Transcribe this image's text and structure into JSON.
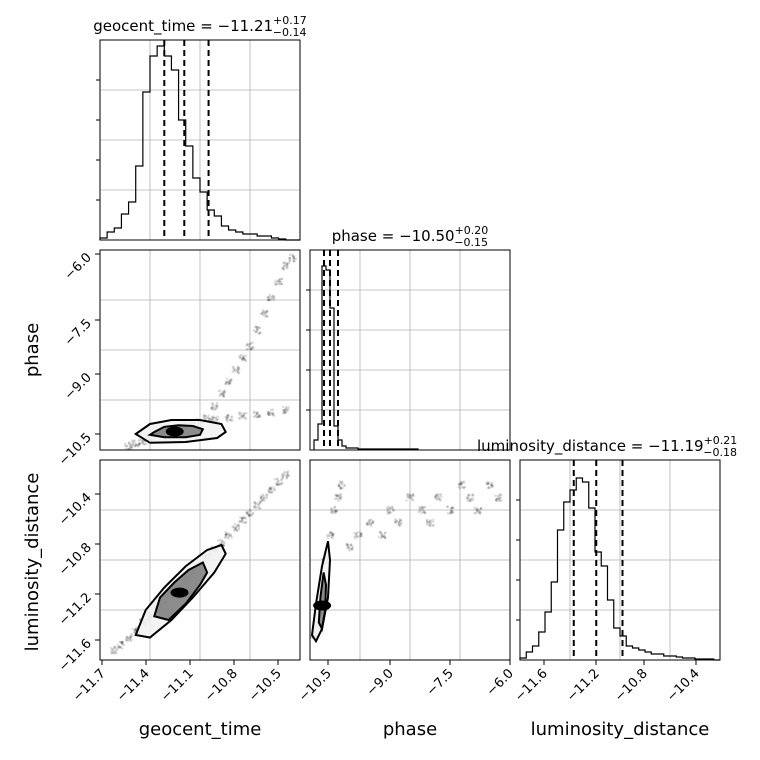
{
  "chart_data": [
    {
      "type": "histogram",
      "parameter": "geocent_time",
      "title_parts": {
        "name": "geocent_time",
        "median": "−11.21",
        "plus": "+0.17",
        "minus": "−0.14"
      },
      "x": [
        -11.775,
        -11.725,
        -11.675,
        -11.625,
        -11.575,
        -11.525,
        -11.475,
        -11.425,
        -11.375,
        -11.325,
        -11.275,
        -11.225,
        -11.175,
        -11.125,
        -11.075,
        -11.025,
        -10.975,
        -10.925,
        -10.875,
        -10.825,
        -10.775,
        -10.725,
        -10.675,
        -10.625,
        -10.575,
        -10.525,
        -10.475,
        -10.425
      ],
      "values": [
        0.01,
        0.04,
        0.06,
        0.13,
        0.19,
        0.37,
        0.74,
        0.92,
        0.97,
        0.92,
        0.85,
        0.6,
        0.47,
        0.31,
        0.24,
        0.15,
        0.12,
        0.07,
        0.05,
        0.04,
        0.03,
        0.03,
        0.02,
        0.02,
        0.01,
        0.005,
        0,
        0
      ],
      "quantiles": [
        -11.35,
        -11.21,
        -11.04
      ],
      "xlim": [
        -11.8,
        -10.4
      ],
      "ylim": [
        0,
        1.0
      ]
    },
    {
      "type": "histogram",
      "parameter": "phase",
      "title_parts": {
        "name": "phase",
        "median": "−10.50",
        "plus": "+0.20",
        "minus": "−0.15"
      },
      "x": [
        -10.85,
        -10.75,
        -10.65,
        -10.55,
        -10.45,
        -10.35,
        -10.25,
        -10.15,
        -10.05,
        -9.95,
        -9.85,
        -9.75,
        -9.65,
        -9.55,
        -9.45,
        -9.35,
        -9.25,
        -9.15,
        -9.05,
        -8.95,
        -8.85,
        -8.75,
        -8.65,
        -8.55,
        -8.45,
        -8.35
      ],
      "values": [
        0.05,
        0.13,
        0.92,
        0.9,
        0.71,
        0.12,
        0.05,
        0.02,
        0.01,
        0.01,
        0.01,
        0.005,
        0.005,
        0.005,
        0.005,
        0.005,
        0.005,
        0.005,
        0.005,
        0.005,
        0.005,
        0.005,
        0.005,
        0.005,
        0.005,
        0.005
      ],
      "quantiles": [
        -10.65,
        -10.5,
        -10.3
      ],
      "xlim": [
        -11.0,
        -6.0
      ],
      "ylim": [
        0,
        1.0
      ]
    },
    {
      "type": "histogram",
      "parameter": "luminosity_distance",
      "title_parts": {
        "name": "luminosity_distance",
        "median": "−11.19",
        "plus": "+0.21",
        "minus": "−0.18"
      },
      "x": [
        -11.775,
        -11.725,
        -11.675,
        -11.625,
        -11.575,
        -11.525,
        -11.475,
        -11.425,
        -11.375,
        -11.325,
        -11.275,
        -11.225,
        -11.175,
        -11.125,
        -11.075,
        -11.025,
        -10.975,
        -10.925,
        -10.875,
        -10.825,
        -10.775,
        -10.725,
        -10.675,
        -10.625,
        -10.575,
        -10.525,
        -10.475,
        -10.425,
        -10.375,
        -10.325,
        -10.275,
        -10.225
      ],
      "values": [
        0.01,
        0.04,
        0.07,
        0.14,
        0.24,
        0.39,
        0.65,
        0.79,
        0.85,
        0.91,
        0.89,
        0.76,
        0.54,
        0.47,
        0.3,
        0.16,
        0.12,
        0.07,
        0.06,
        0.05,
        0.04,
        0.03,
        0.03,
        0.02,
        0.02,
        0.015,
        0.01,
        0.01,
        0.005,
        0.005,
        0.005,
        0
      ],
      "quantiles": [
        -11.37,
        -11.19,
        -10.98
      ],
      "xlim": [
        -11.8,
        -10.2
      ],
      "ylim": [
        0,
        1.0
      ]
    },
    {
      "type": "scatter",
      "x_param": "geocent_time",
      "y_param": "phase",
      "xlim": [
        -11.8,
        -10.4
      ],
      "ylim": [
        -11.0,
        -6.0
      ],
      "x": [
        -11.5,
        -11.45,
        -11.4,
        -11.35,
        -11.3,
        -11.25,
        -11.2,
        -11.15,
        -11.1,
        -11.05,
        -11.0,
        -10.95,
        -10.9,
        -10.85,
        -10.8,
        -10.75,
        -10.7,
        -10.65,
        -10.6,
        -10.55,
        -10.5,
        -10.45,
        -11.6,
        -11.55,
        -11.0,
        -10.9,
        -10.8,
        -10.7,
        -10.6,
        -10.5
      ],
      "y": [
        -10.8,
        -10.7,
        -10.6,
        -10.55,
        -10.5,
        -10.45,
        -10.4,
        -10.35,
        -10.3,
        -10.2,
        -9.9,
        -9.6,
        -9.3,
        -9.0,
        -8.7,
        -8.4,
        -8.0,
        -7.6,
        -7.2,
        -6.8,
        -6.4,
        -6.2,
        -10.9,
        -10.85,
        -10.25,
        -10.2,
        -10.15,
        -10.1,
        -10.05,
        -10.0
      ],
      "contours": [
        {
          "x": [
            -11.42,
            -11.35,
            -11.25,
            -11.15,
            -11.08,
            -11.1,
            -11.2,
            -11.35,
            -11.45,
            -11.42
          ],
          "y": [
            -10.55,
            -10.42,
            -10.38,
            -10.4,
            -10.48,
            -10.62,
            -10.68,
            -10.68,
            -10.62,
            -10.55
          ]
        },
        {
          "x": [
            -11.55,
            -11.45,
            -11.3,
            -11.1,
            -10.95,
            -10.92,
            -10.98,
            -11.2,
            -11.45,
            -11.55
          ],
          "y": [
            -10.6,
            -10.35,
            -10.25,
            -10.25,
            -10.35,
            -10.55,
            -10.7,
            -10.8,
            -10.82,
            -10.6
          ]
        }
      ]
    },
    {
      "type": "scatter",
      "x_param": "geocent_time",
      "y_param": "luminosity_distance",
      "xlim": [
        -11.8,
        -10.4
      ],
      "ylim": [
        -11.8,
        -10.2
      ],
      "x": [
        -11.7,
        -11.65,
        -11.6,
        -11.55,
        -11.5,
        -11.45,
        -11.4,
        -11.35,
        -11.3,
        -11.25,
        -11.2,
        -11.15,
        -11.1,
        -11.05,
        -11.0,
        -10.95,
        -10.9,
        -10.85,
        -10.8,
        -10.75,
        -10.7,
        -10.65,
        -10.6,
        -10.55,
        -10.5
      ],
      "y": [
        -11.72,
        -11.68,
        -11.62,
        -11.56,
        -11.5,
        -11.45,
        -11.4,
        -11.34,
        -11.28,
        -11.22,
        -11.16,
        -11.1,
        -11.04,
        -10.98,
        -10.92,
        -10.86,
        -10.8,
        -10.74,
        -10.68,
        -10.62,
        -10.56,
        -10.5,
        -10.44,
        -10.38,
        -10.32
      ],
      "contours": [
        {
          "x": [
            -11.42,
            -11.38,
            -11.28,
            -11.18,
            -11.08,
            -11.05,
            -11.1,
            -11.2,
            -11.32,
            -11.42
          ],
          "y": [
            -11.45,
            -11.3,
            -11.18,
            -11.08,
            -11.02,
            -11.1,
            -11.2,
            -11.35,
            -11.48,
            -11.45
          ]
        },
        {
          "x": [
            -11.55,
            -11.48,
            -11.35,
            -11.2,
            -11.05,
            -10.95,
            -10.92,
            -11.0,
            -11.15,
            -11.3,
            -11.45,
            -11.55
          ],
          "y": [
            -11.6,
            -11.4,
            -11.22,
            -11.05,
            -10.92,
            -10.88,
            -10.95,
            -11.1,
            -11.3,
            -11.48,
            -11.62,
            -11.6
          ]
        }
      ]
    },
    {
      "type": "scatter",
      "x_param": "phase",
      "y_param": "luminosity_distance",
      "xlim": [
        -11.0,
        -6.0
      ],
      "ylim": [
        -11.8,
        -10.2
      ],
      "x": [
        -10.9,
        -10.8,
        -10.7,
        -10.6,
        -10.5,
        -10.4,
        -10.3,
        -10.2,
        -10.0,
        -9.8,
        -9.5,
        -9.2,
        -9.0,
        -8.8,
        -8.5,
        -8.2,
        -8.0,
        -7.8,
        -7.5,
        -7.2,
        -7.0,
        -6.8,
        -6.5,
        -6.3
      ],
      "y": [
        -11.6,
        -11.4,
        -11.2,
        -11.0,
        -10.8,
        -10.6,
        -10.5,
        -10.4,
        -10.9,
        -10.8,
        -10.7,
        -10.8,
        -10.6,
        -10.7,
        -10.5,
        -10.6,
        -10.7,
        -10.5,
        -10.6,
        -10.4,
        -10.5,
        -10.6,
        -10.4,
        -10.5
      ],
      "contours": [
        {
          "x": [
            -10.78,
            -10.74,
            -10.66,
            -10.6,
            -10.62,
            -10.7,
            -10.78
          ],
          "y": [
            -11.5,
            -11.3,
            -11.1,
            -11.2,
            -11.4,
            -11.55,
            -11.5
          ]
        },
        {
          "x": [
            -10.95,
            -10.85,
            -10.7,
            -10.55,
            -10.5,
            -10.55,
            -10.7,
            -10.85,
            -10.95
          ],
          "y": [
            -11.6,
            -11.35,
            -11.05,
            -10.85,
            -11.0,
            -11.3,
            -11.55,
            -11.65,
            -11.6
          ]
        }
      ]
    }
  ],
  "x_axis_labels": [
    "geocent_time",
    "phase",
    "luminosity_distance"
  ],
  "y_axis_labels": [
    "phase",
    "luminosity_distance"
  ],
  "x_ticks": [
    [
      "−11.7",
      "−11.4",
      "−11.1",
      "−10.8",
      "−10.5"
    ],
    [
      "−10.5",
      "−9.0",
      "−7.5",
      "−6.0"
    ],
    [
      "−11.6",
      "−11.2",
      "−10.8",
      "−10.4"
    ]
  ],
  "y_ticks": [
    [
      "−6.0",
      "−7.5",
      "−9.0",
      "−10.5"
    ],
    [
      "−10.4",
      "−10.8",
      "−11.2",
      "−11.6"
    ]
  ]
}
